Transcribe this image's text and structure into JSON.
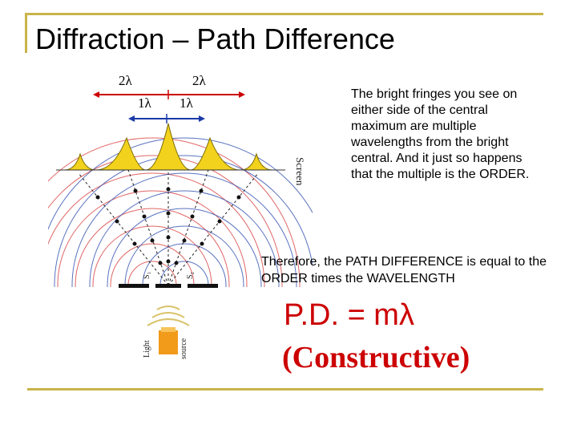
{
  "title": "Diffraction – Path Difference",
  "figure": {
    "label_2lambda_left": "2λ",
    "label_2lambda_right": "2λ",
    "label_1lambda_left": "1λ",
    "label_1lambda_right": "1λ",
    "screen_label": "Screen",
    "slit1_label": "S₁",
    "slit2_label": "S₂",
    "light_label": "Light",
    "source_label": "source"
  },
  "text": {
    "para1": "The bright fringes you see on either side of the central maximum are multiple wavelengths from the bright central. And it just so happens that the multiple is the ORDER.",
    "para2": "Therefore, the PATH DIFFERENCE is equal to the ORDER times the WAVELENGTH",
    "formula": "P.D. = mλ",
    "constructive": "(Constructive)"
  },
  "colors": {
    "frame": "#c8b44a",
    "formula": "#cc0000",
    "arrow_red": "#cc0000",
    "arrow_blue": "#1a3aa8",
    "fringe_fill": "#f2d21c",
    "wave_red": "#d94040",
    "wave_blue": "#3050b0"
  }
}
